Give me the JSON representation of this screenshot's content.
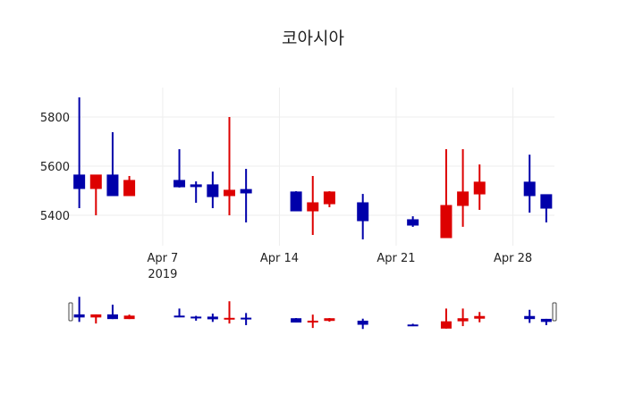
{
  "chart_data": {
    "type": "candlestick",
    "title": "코아시아",
    "xlabel": "",
    "ylabel": "",
    "ylim": [
      5290,
      5920
    ],
    "y_ticks": [
      5400,
      5600,
      5800
    ],
    "y_tick_labels": [
      "5400",
      "5600",
      "5800"
    ],
    "x_ticks": [
      "2019-04-07",
      "2019-04-14",
      "2019-04-21",
      "2019-04-28"
    ],
    "x_tick_labels": [
      "Apr 7",
      "Apr 14",
      "Apr 21",
      "Apr 28"
    ],
    "x_tick_year_label": "2019",
    "grid": true,
    "increasing_color": "#dd0000",
    "decreasing_color": "#0000aa",
    "rangeslider": true,
    "series": [
      {
        "date": "2019-04-02",
        "open": 5564,
        "high": 5880,
        "low": 5429,
        "close": 5509
      },
      {
        "date": "2019-04-03",
        "open": 5509,
        "high": 5564,
        "low": 5400,
        "close": 5564
      },
      {
        "date": "2019-04-04",
        "open": 5564,
        "high": 5738,
        "low": 5480,
        "close": 5480
      },
      {
        "date": "2019-04-05",
        "open": 5480,
        "high": 5560,
        "low": 5480,
        "close": 5542
      },
      {
        "date": "2019-04-08",
        "open": 5542,
        "high": 5669,
        "low": 5513,
        "close": 5516
      },
      {
        "date": "2019-04-09",
        "open": 5524,
        "high": 5538,
        "low": 5451,
        "close": 5520
      },
      {
        "date": "2019-04-10",
        "open": 5524,
        "high": 5578,
        "low": 5429,
        "close": 5476
      },
      {
        "date": "2019-04-11",
        "open": 5480,
        "high": 5800,
        "low": 5400,
        "close": 5502
      },
      {
        "date": "2019-04-12",
        "open": 5505,
        "high": 5589,
        "low": 5371,
        "close": 5491
      },
      {
        "date": "2019-04-15",
        "open": 5495,
        "high": 5498,
        "low": 5418,
        "close": 5418
      },
      {
        "date": "2019-04-16",
        "open": 5418,
        "high": 5560,
        "low": 5320,
        "close": 5451
      },
      {
        "date": "2019-04-17",
        "open": 5447,
        "high": 5498,
        "low": 5433,
        "close": 5495
      },
      {
        "date": "2019-04-19",
        "open": 5451,
        "high": 5487,
        "low": 5302,
        "close": 5378
      },
      {
        "date": "2019-04-22",
        "open": 5382,
        "high": 5396,
        "low": 5353,
        "close": 5360
      },
      {
        "date": "2019-04-24",
        "open": 5309,
        "high": 5669,
        "low": 5309,
        "close": 5440
      },
      {
        "date": "2019-04-25",
        "open": 5440,
        "high": 5669,
        "low": 5353,
        "close": 5495
      },
      {
        "date": "2019-04-26",
        "open": 5487,
        "high": 5607,
        "low": 5422,
        "close": 5535
      },
      {
        "date": "2019-04-29",
        "open": 5535,
        "high": 5647,
        "low": 5411,
        "close": 5480
      },
      {
        "date": "2019-04-30",
        "open": 5484,
        "high": 5484,
        "low": 5371,
        "close": 5429
      }
    ]
  }
}
